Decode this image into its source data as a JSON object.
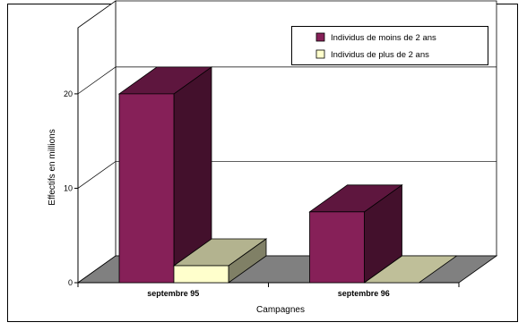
{
  "chart_data": {
    "type": "bar",
    "title": "",
    "xlabel": "Campagnes",
    "ylabel": "Effectifs en millions",
    "categories": [
      "septembre 95",
      "septembre 96"
    ],
    "series": [
      {
        "name": "Individus de moins de 2 ans",
        "values": [
          20,
          7.5
        ],
        "color": "#862058"
      },
      {
        "name": "Individus de plus de 2 ans",
        "values": [
          1.8,
          0
        ],
        "color": "#ffffcc"
      }
    ],
    "ylim": [
      0,
      27
    ],
    "yticks": [
      0,
      10,
      20
    ],
    "grid": true,
    "legend": "top-right",
    "render": "3d-clustered-bar"
  }
}
